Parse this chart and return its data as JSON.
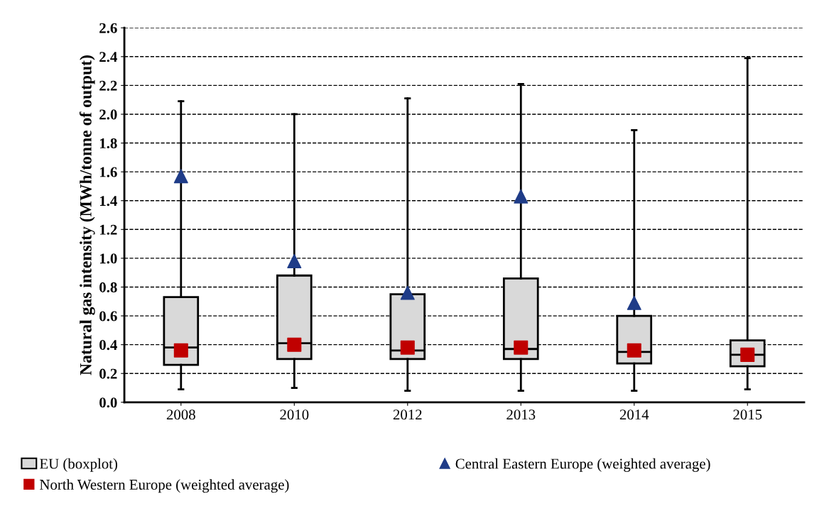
{
  "chart_data": {
    "type": "box",
    "ylabel": "Natural gas intensity (MWh/tonne of output)",
    "categories": [
      "2008",
      "2010",
      "2012",
      "2013",
      "2014",
      "2015"
    ],
    "ylim": [
      0,
      2.6
    ],
    "yticks": [
      {
        "value": 0,
        "label": "0.0"
      },
      0.2,
      0.4,
      0.6,
      0.8,
      {
        "value": 1,
        "label": "1.0"
      },
      1.2,
      1.4,
      1.6,
      1.8,
      {
        "value": 2,
        "label": "2.0"
      },
      2.2,
      2.4,
      2.6
    ],
    "grid": "y",
    "legend": "bottom",
    "series": [
      {
        "name": "EU (boxplot)",
        "color": "#d9d9d9",
        "boxes": [
          {
            "low": 0.09,
            "q1": 0.26,
            "median": 0.38,
            "q3": 0.73,
            "high": 2.09
          },
          {
            "low": 0.1,
            "q1": 0.3,
            "median": 0.41,
            "q3": 0.88,
            "high": 2.0
          },
          {
            "low": 0.08,
            "q1": 0.3,
            "median": 0.36,
            "q3": 0.75,
            "high": 2.11
          },
          {
            "low": 0.08,
            "q1": 0.3,
            "median": 0.37,
            "q3": 0.86,
            "high": 2.21
          },
          {
            "low": 0.08,
            "q1": 0.27,
            "median": 0.35,
            "q3": 0.6,
            "high": 1.89
          },
          {
            "low": 0.09,
            "q1": 0.25,
            "median": 0.33,
            "q3": 0.43,
            "high": 2.39
          }
        ]
      },
      {
        "name": "Central Eastern Europe (weighted average)",
        "type": "scatter",
        "marker": "triangle",
        "color": "#1f3c88",
        "values": [
          1.57,
          0.98,
          0.76,
          1.43,
          0.69,
          null
        ]
      },
      {
        "name": "North Western Europe (weighted average)",
        "type": "scatter",
        "marker": "square",
        "color": "#c00000",
        "values": [
          0.36,
          0.4,
          0.38,
          0.38,
          0.36,
          0.33
        ]
      }
    ]
  }
}
